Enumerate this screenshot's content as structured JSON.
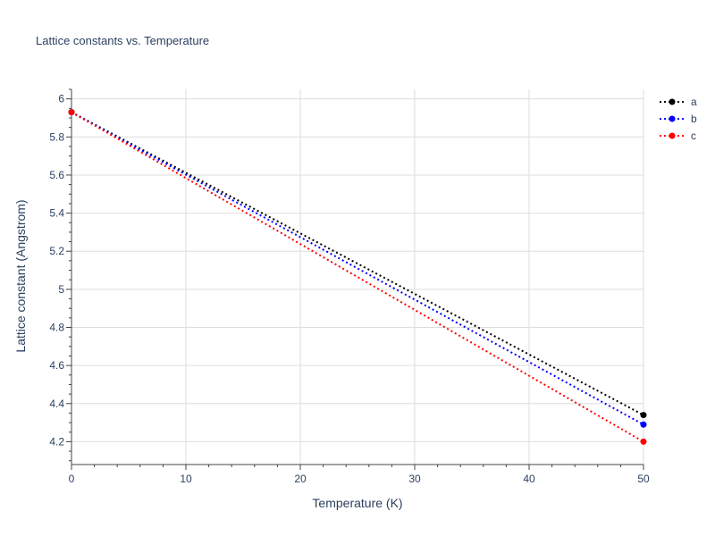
{
  "chart_data": {
    "type": "line",
    "title": "Lattice constants vs. Temperature",
    "xlabel": "Temperature (K)",
    "ylabel": "Lattice constant (Angstrom)",
    "x": [
      0,
      50
    ],
    "xlim": [
      0,
      50
    ],
    "ylim": [
      4.08,
      6.05
    ],
    "xticks": [
      0,
      10,
      20,
      30,
      40,
      50
    ],
    "xtick_labels": [
      "0",
      "10",
      "20",
      "30",
      "40",
      "50"
    ],
    "yticks": [
      4.2,
      4.4,
      4.6,
      4.8,
      5.0,
      5.2,
      5.4,
      5.6,
      5.8,
      6.0
    ],
    "ytick_labels": [
      "4.2",
      "4.4",
      "4.6",
      "4.8",
      "5",
      "5.2",
      "5.4",
      "5.6",
      "5.8",
      "6"
    ],
    "grid": true,
    "legend_position": "top-right",
    "line_style": "dotted",
    "marker": "circle",
    "series": [
      {
        "name": "a",
        "color": "#000000",
        "values": [
          5.93,
          4.34
        ]
      },
      {
        "name": "b",
        "color": "#0000ff",
        "values": [
          5.93,
          4.29
        ]
      },
      {
        "name": "c",
        "color": "#ff0000",
        "values": [
          5.93,
          4.2
        ]
      }
    ]
  }
}
